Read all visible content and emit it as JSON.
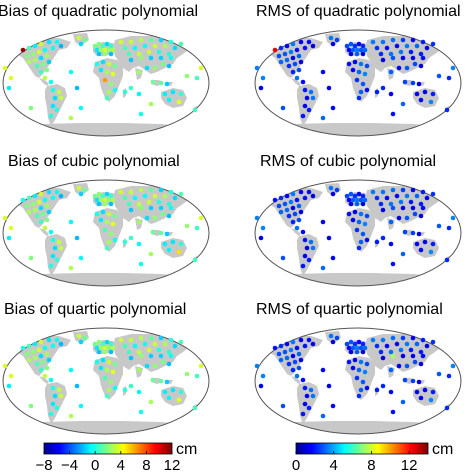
{
  "panels": [
    {
      "title": "Bias of quadratic polynomial",
      "scale": "bias",
      "map": "quad-bias"
    },
    {
      "title": "RMS of quadratic polynomial",
      "scale": "rms",
      "map": "quad-rms"
    },
    {
      "title": "Bias of cubic polynomial",
      "scale": "bias",
      "map": "cubic-bias"
    },
    {
      "title": "RMS of cubic polynomial",
      "scale": "rms",
      "map": "cubic-rms"
    },
    {
      "title": "Bias of quartic polynomial",
      "scale": "bias",
      "map": "quartic-bias"
    },
    {
      "title": "RMS of quartic polynomial",
      "scale": "rms",
      "map": "quartic-rms"
    }
  ],
  "colorbars": {
    "bias": {
      "ticks": [
        "−8",
        "−4",
        "0",
        "4",
        "8",
        "12"
      ],
      "range": [
        -8,
        12
      ],
      "unit": "cm"
    },
    "rms": {
      "ticks": [
        "0",
        "4",
        "8",
        "12"
      ],
      "range": [
        0,
        14
      ],
      "unit": "cm"
    }
  },
  "colors": {
    "land": "#c8c8c8",
    "ocean": "#ffffff",
    "outline": "#555555",
    "colormap": "jet"
  }
}
